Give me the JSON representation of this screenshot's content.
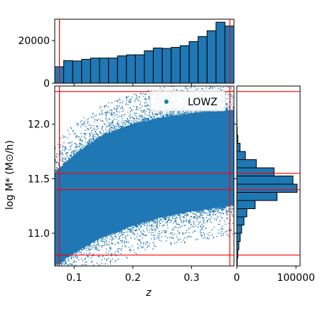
{
  "chart_data": {
    "type": "scatter",
    "xlabel": "z",
    "ylabel": "log M* (M⊙/h)",
    "legend": {
      "label": "LOWZ",
      "position": "top-right"
    },
    "marker_color": "#1f77b4",
    "line_color": "#ff0000",
    "main": {
      "xlim": [
        0.067,
        0.372
      ],
      "ylim": [
        10.7,
        12.35
      ],
      "xticks": [
        0.1,
        0.2,
        0.3
      ],
      "xtick_labels": [
        "0.1",
        "0.2",
        "0.3"
      ],
      "yticks": [
        11.0,
        11.5,
        12.0
      ],
      "ytick_labels": [
        "11.0",
        "11.5",
        "12.0"
      ],
      "vlines": [
        0.075,
        0.365
      ],
      "hlines": [
        10.8,
        11.4,
        11.55,
        12.3
      ]
    },
    "top_hist": {
      "ylim": [
        0,
        30000
      ],
      "yticks": [
        0,
        20000
      ],
      "ytick_labels": [
        "0",
        "20000"
      ],
      "bin_edges": [
        0.067,
        0.0822,
        0.0975,
        0.1128,
        0.128,
        0.1432,
        0.1585,
        0.1738,
        0.189,
        0.2042,
        0.2195,
        0.2347,
        0.25,
        0.2653,
        0.2805,
        0.2957,
        0.311,
        0.3262,
        0.3415,
        0.3567,
        0.372
      ],
      "counts": [
        7700,
        10600,
        10400,
        11200,
        11800,
        11800,
        11800,
        12800,
        13300,
        13300,
        15200,
        16500,
        16300,
        16800,
        17600,
        19500,
        21900,
        24600,
        28600,
        26800
      ]
    },
    "right_hist": {
      "xlim": [
        0,
        107000
      ],
      "xticks": [
        0,
        100000
      ],
      "xtick_labels": [
        "0",
        "100000"
      ],
      "bin_edges": [
        10.7,
        10.775,
        10.85,
        10.925,
        11.0,
        11.075,
        11.15,
        11.225,
        11.3,
        11.375,
        11.45,
        11.525,
        11.6,
        11.675,
        11.75,
        11.825,
        11.9,
        11.975,
        12.05,
        12.125,
        12.2,
        12.275,
        12.35
      ],
      "counts": [
        900,
        1800,
        3500,
        5800,
        8200,
        12100,
        17000,
        31000,
        68000,
        102000,
        95000,
        63000,
        33000,
        14500,
        5500,
        1800,
        600,
        200,
        100,
        0,
        0,
        0
      ]
    },
    "scatter_envelope": {
      "x": [
        0.067,
        0.1,
        0.15,
        0.2,
        0.25,
        0.3,
        0.35,
        0.372
      ],
      "upper": [
        11.55,
        11.72,
        11.9,
        12.0,
        12.06,
        12.1,
        12.12,
        12.13
      ],
      "lower": [
        10.7,
        10.82,
        10.97,
        11.07,
        11.15,
        11.2,
        11.24,
        11.26
      ]
    }
  }
}
